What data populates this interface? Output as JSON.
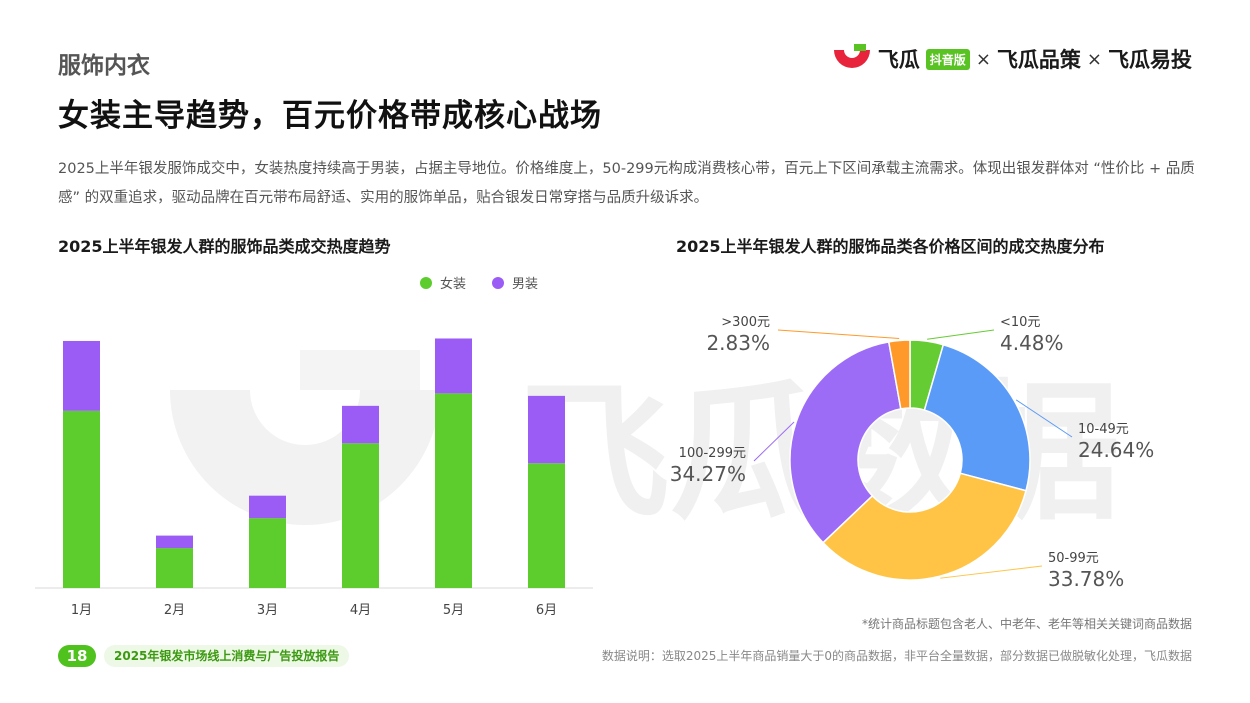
{
  "header": {
    "section_tag": "服饰内衣",
    "headline": "女装主导趋势，百元价格带成核心战场",
    "description": "2025上半年银发服饰成交中，女装热度持续高于男装，占据主导地位。价格维度上，50-299元构成消费核心带，百元上下区间承载主流需求。体现出银发群体对 “性价比 + 品质感” 的双重追求，驱动品牌在百元带布局舒适、实用的服饰单品，贴合银发日常穿搭与品质升级诉求。"
  },
  "logo": {
    "brand_1": "飞瓜",
    "badge": "抖音版",
    "sep": "×",
    "brand_2": "飞瓜品策",
    "brand_3": "飞瓜易投"
  },
  "watermark_text": "飞瓜数据",
  "colors": {
    "women": "#5ccd2c",
    "men": "#9b5cf6",
    "slice_lt10": "#66cc33",
    "slice_10_49": "#5b9bf8",
    "slice_50_99": "#ffc445",
    "slice_100_299": "#9d6cf6",
    "slice_gt300": "#ff9a2a",
    "page_badge": "#4fc21d"
  },
  "chart_data": [
    {
      "type": "bar",
      "stacked": true,
      "title": "2025上半年银发人群的服饰品类成交热度趋势",
      "categories": [
        "1月",
        "2月",
        "3月",
        "4月",
        "5月",
        "6月"
      ],
      "series": [
        {
          "name": "女装",
          "values": [
            71,
            16,
            28,
            58,
            78,
            50
          ]
        },
        {
          "name": "男装",
          "values": [
            28,
            5,
            9,
            15,
            22,
            27
          ]
        }
      ],
      "ylim": [
        0,
        105
      ],
      "legend": "top-center",
      "grid": false
    },
    {
      "type": "pie",
      "donut": true,
      "title": "2025上半年银发人群的服饰品类各价格区间的成交热度分布",
      "labels": [
        "<10元",
        "10-49元",
        "50-99元",
        "100-299元",
        ">300元"
      ],
      "values": [
        4.48,
        24.64,
        33.78,
        34.27,
        2.83
      ],
      "value_labels": [
        "4.48%",
        "24.64%",
        "33.78%",
        "34.27%",
        "2.83%"
      ]
    }
  ],
  "footer": {
    "page_number": "18",
    "report_name": "2025年银发市场线上消费与广告投放报告",
    "footnote": "*统计商品标题包含老人、中老年、老年等相关关键词商品数据",
    "data_note": "数据说明：选取2025上半年商品销量大于0的商品数据，非平台全量数据，部分数据已做脱敏化处理，飞瓜数据"
  }
}
